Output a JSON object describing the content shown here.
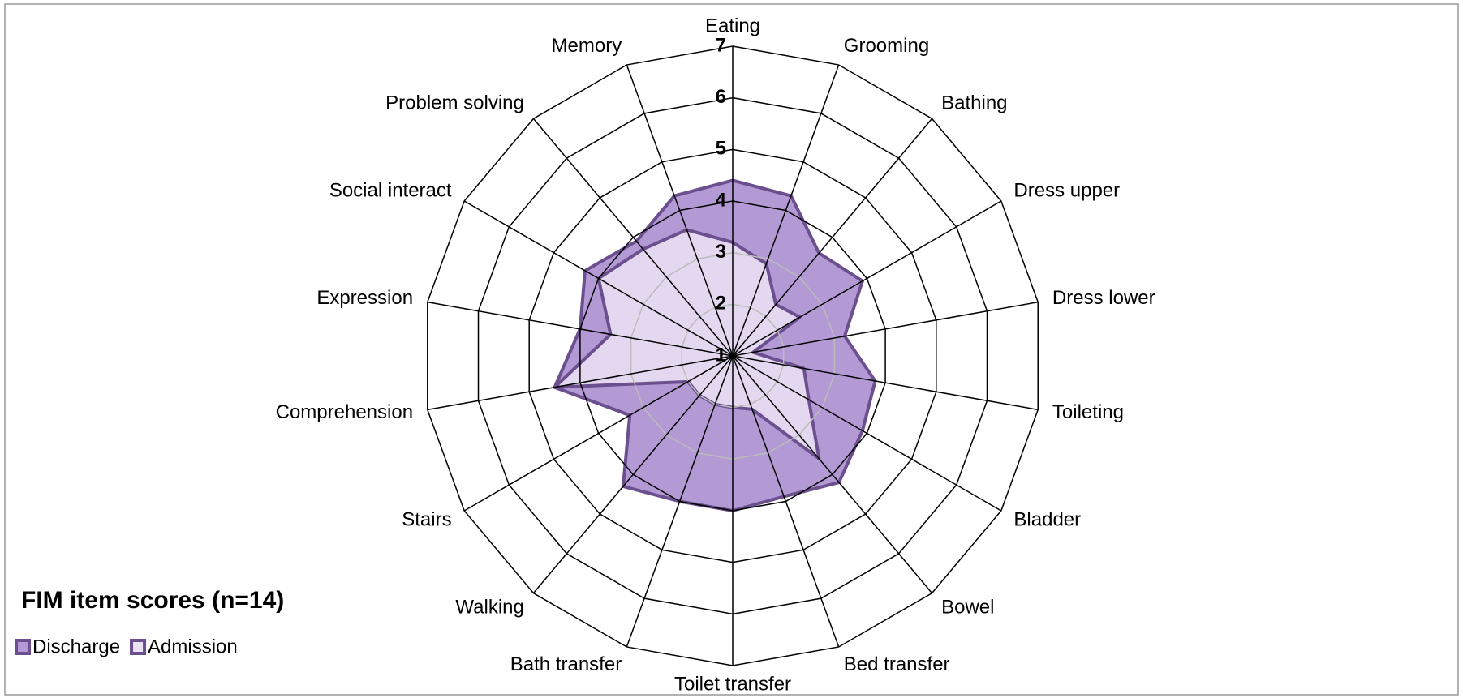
{
  "chart_data": {
    "type": "radar",
    "title": "FIM item scores (n=14)",
    "categories": [
      "Eating",
      "Grooming",
      "Bathing",
      "Dress upper",
      "Dress lower",
      "Toileting",
      "Bladder",
      "Bowel",
      "Bed transfer",
      "Toilet transfer",
      "Bath transfer",
      "Walking",
      "Stairs",
      "Comprehension",
      "Expression",
      "Social interact",
      "Problem solving",
      "Memory"
    ],
    "series": [
      {
        "name": "Discharge",
        "color": "#b39ad5",
        "values": [
          4.4,
          4.3,
          3.6,
          3.9,
          3.2,
          3.8,
          3.9,
          4.2,
          3.9,
          4.0,
          4.0,
          4.3,
          3.3,
          4.5,
          4.0,
          4.3,
          3.9,
          4.3
        ]
      },
      {
        "name": "Admission",
        "color": "#ebe3f3",
        "values": [
          3.2,
          2.9,
          2.3,
          2.5,
          1.4,
          2.4,
          2.7,
          3.6,
          2.1,
          2.0,
          2.0,
          2.0,
          2.0,
          4.5,
          3.4,
          4.0,
          3.7,
          3.6
        ]
      }
    ],
    "rlim": [
      1,
      7
    ],
    "rticks": [
      1,
      2,
      3,
      4,
      5,
      6,
      7
    ],
    "edge_color": "#6b4f8e",
    "legend": "lower left"
  }
}
